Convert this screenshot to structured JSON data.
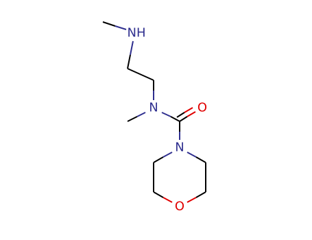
{
  "atoms": [
    {
      "label": "NH"
    },
    {
      "label": "N"
    },
    {
      "label": "O"
    },
    {
      "label": "N"
    },
    {
      "label": "O"
    }
  ]
}
